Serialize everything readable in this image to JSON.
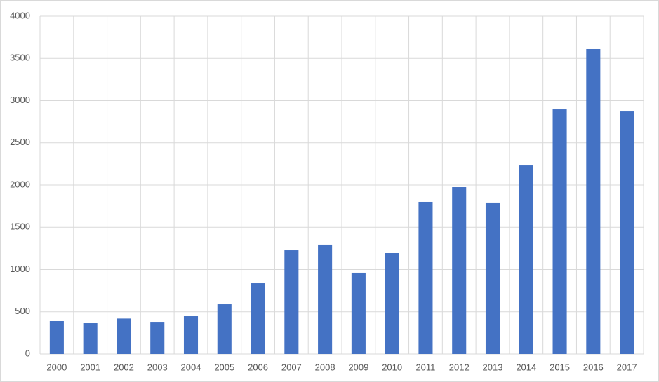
{
  "chart_data": {
    "type": "bar",
    "categories": [
      "2000",
      "2001",
      "2002",
      "2003",
      "2004",
      "2005",
      "2006",
      "2007",
      "2008",
      "2009",
      "2010",
      "2011",
      "2012",
      "2013",
      "2014",
      "2015",
      "2016",
      "2017"
    ],
    "values": [
      390,
      365,
      420,
      373,
      448,
      589,
      838,
      1228,
      1295,
      963,
      1195,
      1801,
      1975,
      1793,
      2232,
      2896,
      3610,
      2871
    ],
    "color": "#4472c4",
    "ylim": [
      0,
      4000
    ],
    "yticks": [
      0,
      500,
      1000,
      1500,
      2000,
      2500,
      3000,
      3500,
      4000
    ],
    "grid": true
  }
}
